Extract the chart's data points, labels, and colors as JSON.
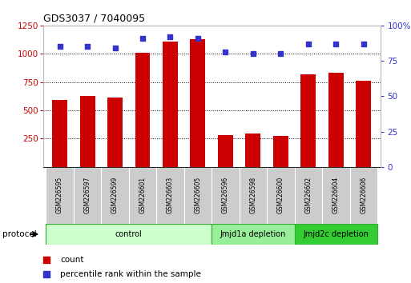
{
  "title": "GDS3037 / 7040095",
  "samples": [
    "GSM226595",
    "GSM226597",
    "GSM226599",
    "GSM226601",
    "GSM226603",
    "GSM226605",
    "GSM226596",
    "GSM226598",
    "GSM226600",
    "GSM226602",
    "GSM226604",
    "GSM226606"
  ],
  "counts": [
    590,
    625,
    615,
    1010,
    1110,
    1130,
    280,
    295,
    275,
    820,
    835,
    760
  ],
  "percentile_ranks": [
    85,
    85,
    84,
    91,
    92,
    91,
    81,
    80,
    80,
    87,
    87,
    87
  ],
  "bar_color": "#cc0000",
  "dot_color": "#3333cc",
  "ylim_left": [
    0,
    1250
  ],
  "ylim_right": [
    0,
    100
  ],
  "yticks_left": [
    250,
    500,
    750,
    1000,
    1250
  ],
  "yticks_right": [
    0,
    25,
    50,
    75,
    100
  ],
  "protocol_groups": [
    {
      "label": "control",
      "start": 0,
      "end": 6,
      "color": "#ccffcc",
      "edge_color": "#33aa33"
    },
    {
      "label": "Jmjd1a depletion",
      "start": 6,
      "end": 9,
      "color": "#99ee99",
      "edge_color": "#33aa33"
    },
    {
      "label": "Jmjd2c depletion",
      "start": 9,
      "end": 12,
      "color": "#22cc22",
      "edge_color": "#33aa33"
    }
  ],
  "legend_items": [
    {
      "label": "count",
      "color": "#cc0000"
    },
    {
      "label": "percentile rank within the sample",
      "color": "#3333cc"
    }
  ],
  "protocol_label": "protocol",
  "tick_label_color_left": "#cc0000",
  "tick_label_color_right": "#3333cc"
}
